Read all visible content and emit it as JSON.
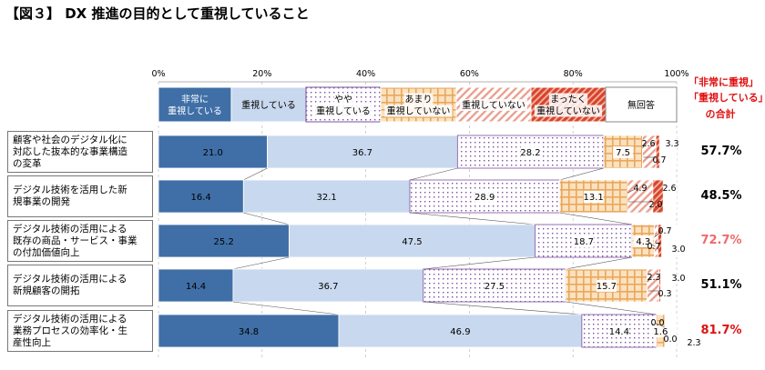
{
  "title": "【図３】 DX 推進の目的として重視していること",
  "legend": [
    {
      "label": "非常に\n重視している",
      "color": "#3f6fa6",
      "pattern": "solid",
      "text_color": "#ffffff"
    },
    {
      "label": "重視している",
      "color": "#c8d8ee",
      "pattern": "solid",
      "text_color": "#000000"
    },
    {
      "label": "やや\n重視している",
      "color": "#7b4fa0",
      "pattern": "dots",
      "text_color": "#000000"
    },
    {
      "label": "あまり\n重視していない",
      "color": "#e8a85c",
      "pattern": "grid",
      "text_color": "#000000"
    },
    {
      "label": "重視していない",
      "color": "#e07060",
      "pattern": "diag-light",
      "text_color": "#000000"
    },
    {
      "label": "まったく\n重視していない",
      "color": "#d8442a",
      "pattern": "diag-dense",
      "text_color": "#000000"
    },
    {
      "label": "無回答",
      "color": "#ffffff",
      "pattern": "none",
      "text_color": "#000000"
    }
  ],
  "side_header": {
    "line1": "「非常に重視」",
    "line2": "「重視している」",
    "line3": "の合計"
  },
  "chart_data": {
    "type": "bar",
    "orientation": "horizontal-stacked-100",
    "xlim": [
      0,
      100
    ],
    "xticks": [
      "0%",
      "20%",
      "40%",
      "60%",
      "80%",
      "100%"
    ],
    "categories": [
      "顧客や社会のデジタル化に\n対応した抜本的な事業構造\nの変革",
      "デジタル技術を活用した新\n規事業の開発",
      "デジタル技術の活用による\n既存の商品・サービス・事業\nの付加価値向上",
      "デジタル技術の活用による\n新規顧客の開拓",
      "デジタル技術の活用による\n業務プロセスの効率化・生\n産性向上"
    ],
    "series": [
      {
        "name": "非常に重視している",
        "values": [
          21.0,
          16.4,
          25.2,
          14.4,
          34.8
        ]
      },
      {
        "name": "重視している",
        "values": [
          36.7,
          32.1,
          47.5,
          36.7,
          46.9
        ]
      },
      {
        "name": "やや重視している",
        "values": [
          28.2,
          28.9,
          18.7,
          27.5,
          14.4
        ]
      },
      {
        "name": "あまり重視していない",
        "values": [
          7.5,
          13.1,
          4.3,
          15.7,
          1.6
        ]
      },
      {
        "name": "重視していない",
        "values": [
          2.6,
          4.9,
          0.7,
          2.3,
          0.0
        ]
      },
      {
        "name": "まったく重視していない",
        "values": [
          0.7,
          2.0,
          0.7,
          0.3,
          0.0
        ]
      },
      {
        "name": "無回答",
        "values": [
          3.3,
          2.6,
          3.0,
          3.0,
          2.3
        ]
      }
    ],
    "value_labels": [
      [
        "21.0",
        "36.7",
        "28.2",
        "7.5",
        "2.6",
        "0.7",
        "3.3"
      ],
      [
        "16.4",
        "32.1",
        "28.9",
        "13.1",
        "4.9",
        "2.0",
        "2.6"
      ],
      [
        "25.2",
        "47.5",
        "18.7",
        "4.3",
        "0.7",
        "0.7",
        "3.0"
      ],
      [
        "14.4",
        "36.7",
        "27.5",
        "15.7",
        "2.3",
        "0.3",
        "3.0"
      ],
      [
        "34.8",
        "46.9",
        "14.4",
        "1.6",
        "0.0",
        "0.0",
        "2.3"
      ]
    ],
    "totals": [
      {
        "value": "57.7%",
        "highlight": false
      },
      {
        "value": "48.5%",
        "highlight": false
      },
      {
        "value": "72.7%",
        "highlight": true,
        "color": "#f06a6a"
      },
      {
        "value": "51.1%",
        "highlight": false
      },
      {
        "value": "81.7%",
        "highlight": true,
        "color": "#e01010"
      }
    ]
  }
}
